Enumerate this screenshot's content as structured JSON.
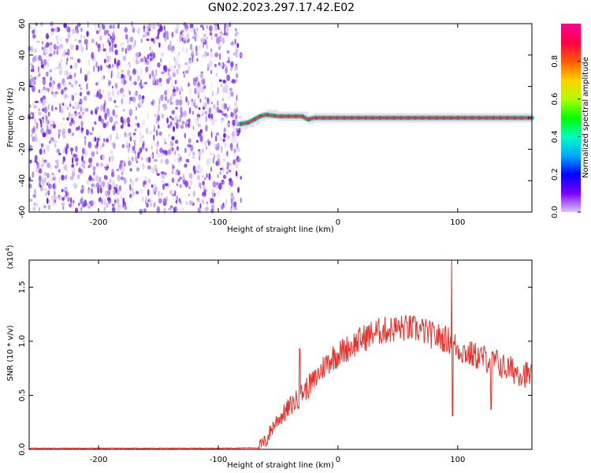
{
  "title": "GN02.2023.297.17.42.E02",
  "colors": {
    "background": "#ffffff",
    "snr_line": "#e8312a",
    "spec_noise": "#7b2cf0",
    "spec_band_core": "#ee2b50",
    "spec_band_edge": "#17e07a",
    "colorbar": [
      "#d9c8f7",
      "#7a00ff",
      "#0000ff",
      "#00aaff",
      "#00ffc0",
      "#00ff00",
      "#b0ff00",
      "#ffd000",
      "#ff5a00",
      "#ff0044",
      "#ff0090"
    ]
  },
  "chart_data": [
    {
      "type": "heatmap",
      "xlabel": "Height of straight line (km)",
      "ylabel": "Frequency (Hz)",
      "xlim": [
        -258,
        162
      ],
      "ylim": [
        -60,
        60
      ],
      "xticks": [
        -200,
        -100,
        0,
        100
      ],
      "yticks": [
        -60,
        -40,
        -20,
        0,
        20,
        40,
        60
      ],
      "xtick_labels": [
        "-200",
        "-100",
        "0",
        "100"
      ],
      "ytick_labels": [
        "-60",
        "-40",
        "-20",
        "0",
        "20",
        "40",
        "60"
      ],
      "noise_region_x": [
        -258,
        -81
      ],
      "signal_band": {
        "x": [
          -82,
          -75,
          -70,
          -65,
          -60,
          -50,
          -40,
          -30,
          -25,
          -20,
          0,
          20,
          40,
          60,
          80,
          100,
          120,
          162
        ],
        "freq": [
          -4,
          -3,
          -1,
          1,
          2,
          1,
          1,
          1,
          -1,
          0,
          0,
          0,
          0,
          0,
          0,
          0,
          0,
          0
        ]
      },
      "colorbar": {
        "label": "Normalized spectral amplitude",
        "range": [
          0.0,
          1.0
        ],
        "ticks": [
          0.0,
          0.2,
          0.4,
          0.6,
          0.8
        ],
        "tick_labels": [
          "0.0",
          "0.2",
          "0.4",
          "0.6",
          "0.8"
        ]
      }
    },
    {
      "type": "line",
      "xlabel": "Height of straight line (km)",
      "ylabel": "SNR (10 * v/v)",
      "exponent_label": "(x10",
      "exponent_power": "4",
      "exponent_close": ")",
      "xlim": [
        -258,
        162
      ],
      "ylim": [
        0,
        1.75
      ],
      "xticks": [
        -200,
        -100,
        0,
        100
      ],
      "yticks": [
        0.0,
        0.5,
        1.0,
        1.5
      ],
      "xtick_labels": [
        "-200",
        "-100",
        "0",
        "100"
      ],
      "ytick_labels": [
        "0.0",
        "0.5",
        "1.0",
        "1.5"
      ],
      "series": [
        {
          "x": [
            -258,
            -200,
            -150,
            -100,
            -66,
            -60,
            -55,
            -50,
            -45,
            -40,
            -35,
            -30,
            -25,
            -20,
            -15,
            -10,
            -5,
            0,
            10,
            20,
            30,
            40,
            50,
            60,
            70,
            80,
            90,
            95,
            100,
            110,
            120,
            130,
            140,
            150,
            162
          ],
          "y": [
            0.01,
            0.01,
            0.01,
            0.01,
            0.015,
            0.08,
            0.2,
            0.28,
            0.33,
            0.4,
            0.45,
            0.52,
            0.58,
            0.63,
            0.72,
            0.79,
            0.85,
            0.88,
            0.95,
            1.02,
            1.08,
            1.1,
            1.12,
            1.12,
            1.1,
            1.05,
            1.02,
            1.0,
            0.93,
            0.88,
            0.85,
            0.82,
            0.75,
            0.72,
            0.68
          ]
        }
      ]
    }
  ]
}
